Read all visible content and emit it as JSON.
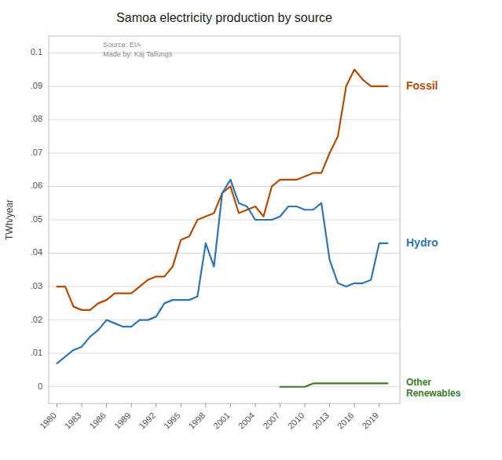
{
  "chart_data": {
    "type": "line",
    "title": "Samoa electricity production by source",
    "annotations": [
      "Source: EIA",
      "Made by: Kaj Tallungs"
    ],
    "ylabel": "TWh/year",
    "xlim": [
      1979,
      2021.5
    ],
    "ylim": [
      -0.005,
      0.105
    ],
    "xticks": [
      1980,
      1983,
      1986,
      1989,
      1992,
      1995,
      1998,
      2001,
      2004,
      2007,
      2010,
      2013,
      2016,
      2019
    ],
    "yticks": [
      0,
      {
        "value": 0.01,
        "label": ".01"
      },
      {
        "value": 0.02,
        "label": ".02"
      },
      {
        "value": 0.03,
        "label": ".03"
      },
      {
        "value": 0.04,
        "label": ".04"
      },
      {
        "value": 0.05,
        "label": ".05"
      },
      {
        "value": 0.06,
        "label": ".06"
      },
      {
        "value": 0.07,
        "label": ".07"
      },
      {
        "value": 0.08,
        "label": ".08"
      },
      {
        "value": 0.09,
        "label": ".09"
      },
      0.1
    ],
    "grid": true,
    "series": [
      {
        "name": "Fossil",
        "color": "#b94a00",
        "x": [
          1980,
          1981,
          1982,
          1983,
          1984,
          1985,
          1986,
          1987,
          1988,
          1989,
          1990,
          1991,
          1992,
          1993,
          1994,
          1995,
          1996,
          1997,
          1998,
          1999,
          2000,
          2001,
          2002,
          2003,
          2004,
          2005,
          2006,
          2007,
          2008,
          2009,
          2010,
          2011,
          2012,
          2013,
          2014,
          2015,
          2016,
          2017,
          2018,
          2019,
          2020
        ],
        "values": [
          0.03,
          0.03,
          0.024,
          0.023,
          0.023,
          0.025,
          0.026,
          0.028,
          0.028,
          0.028,
          0.03,
          0.032,
          0.033,
          0.033,
          0.036,
          0.044,
          0.045,
          0.05,
          0.051,
          0.052,
          0.058,
          0.06,
          0.052,
          0.053,
          0.054,
          0.051,
          0.06,
          0.062,
          0.062,
          0.062,
          0.063,
          0.064,
          0.064,
          0.07,
          0.075,
          0.09,
          0.095,
          0.092,
          0.09,
          0.09,
          0.09
        ]
      },
      {
        "name": "Hydro",
        "color": "#2e75b6",
        "x": [
          1980,
          1981,
          1982,
          1983,
          1984,
          1985,
          1986,
          1987,
          1988,
          1989,
          1990,
          1991,
          1992,
          1993,
          1994,
          1995,
          1996,
          1997,
          1998,
          1999,
          2000,
          2001,
          2002,
          2003,
          2004,
          2005,
          2006,
          2007,
          2008,
          2009,
          2010,
          2011,
          2012,
          2013,
          2014,
          2015,
          2016,
          2017,
          2018,
          2019,
          2020
        ],
        "values": [
          0.007,
          0.009,
          0.011,
          0.012,
          0.015,
          0.017,
          0.02,
          0.019,
          0.018,
          0.018,
          0.02,
          0.02,
          0.021,
          0.025,
          0.026,
          0.026,
          0.026,
          0.027,
          0.043,
          0.036,
          0.058,
          0.062,
          0.055,
          0.054,
          0.05,
          0.05,
          0.05,
          0.051,
          0.054,
          0.054,
          0.053,
          0.053,
          0.055,
          0.038,
          0.031,
          0.03,
          0.031,
          0.031,
          0.032,
          0.043,
          0.043
        ]
      },
      {
        "name": "Other\nRenewables",
        "color": "#3a7a28",
        "x": [
          2007,
          2008,
          2009,
          2010,
          2011,
          2012,
          2013,
          2014,
          2015,
          2016,
          2017,
          2018,
          2019,
          2020
        ],
        "values": [
          0.0,
          0.0,
          0.0,
          0.0,
          0.001,
          0.001,
          0.001,
          0.001,
          0.001,
          0.001,
          0.001,
          0.001,
          0.001,
          0.001
        ]
      }
    ]
  }
}
